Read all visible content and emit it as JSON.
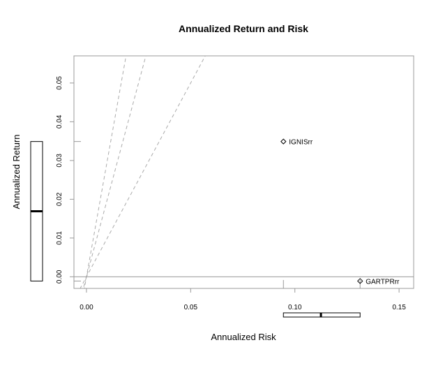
{
  "chart_data": {
    "type": "scatter",
    "title": "Annualized Return and Risk",
    "xlabel": "Annualized Risk",
    "ylabel": "Annualized Return",
    "xlim": [
      -0.006,
      0.157
    ],
    "ylim": [
      -0.003,
      0.057
    ],
    "xticks": [
      0.0,
      0.05,
      0.1,
      0.15
    ],
    "xtick_labels": [
      "0.00",
      "0.05",
      "0.10",
      "0.15"
    ],
    "yticks": [
      0.0,
      0.01,
      0.02,
      0.03,
      0.04,
      0.05
    ],
    "ytick_labels": [
      "0.00",
      "0.01",
      "0.02",
      "0.03",
      "0.04",
      "0.05"
    ],
    "points": [
      {
        "label": "IGNISrr",
        "x": 0.0945,
        "y": 0.0349
      },
      {
        "label": "GARTPRrr",
        "x": 0.1313,
        "y": -0.0011
      }
    ],
    "reference_lines": [
      {
        "slope": 3.0,
        "intercept": 0.0
      },
      {
        "slope": 2.0,
        "intercept": 0.0
      },
      {
        "slope": 1.0,
        "intercept": 0.0
      }
    ],
    "hline": 0.0,
    "risk_boxplot": {
      "min": 0.0945,
      "median": 0.1125,
      "max": 0.1313
    },
    "return_boxplot": {
      "min": -0.0011,
      "median": 0.0169,
      "max": 0.0349
    },
    "grid": false,
    "legend": "none",
    "colors": {
      "axis": "#999999",
      "reference": "#aaaaaa",
      "points": "#000000"
    }
  }
}
